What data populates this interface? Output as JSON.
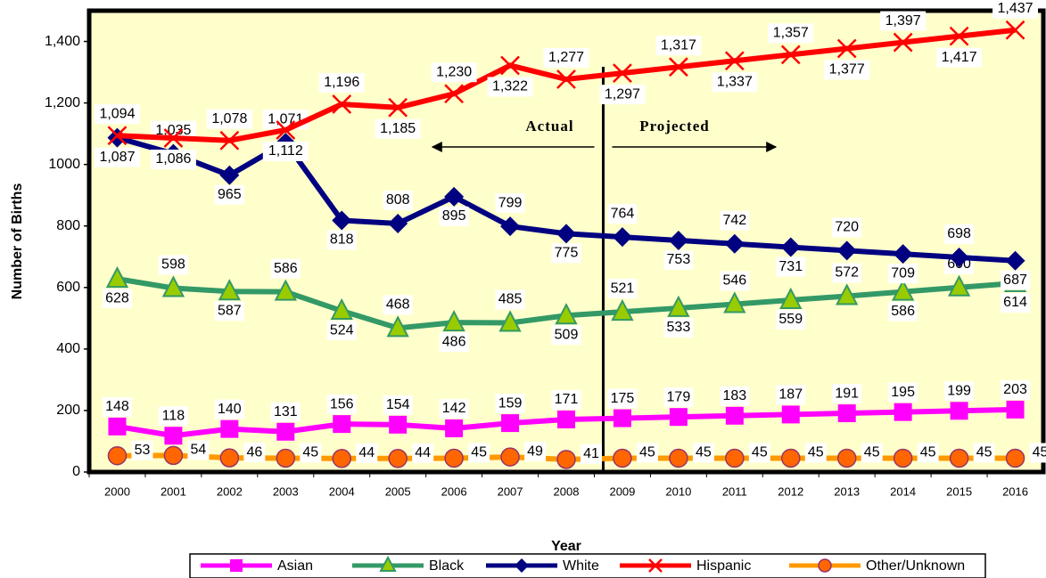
{
  "chart_data": {
    "type": "line",
    "categories": [
      "2000",
      "2001",
      "2002",
      "2003",
      "2004",
      "2005",
      "2006",
      "2007",
      "2008",
      "2009",
      "2010",
      "2011",
      "2012",
      "2013",
      "2014",
      "2015",
      "2016"
    ],
    "xlabel": "Year",
    "ylabel": "Number of Births",
    "ylim": [
      0,
      1500
    ],
    "yticks": [
      0,
      200,
      400,
      600,
      800,
      1000,
      {
        "value": 1200,
        "label": "1,200"
      },
      {
        "value": 1400,
        "label": "1,400"
      }
    ],
    "yticks_fix": null,
    "annotations": [
      "Actual",
      "Projected"
    ],
    "series": [
      {
        "name": "Asian",
        "color": "#ff00ff",
        "marker": "square",
        "values": [
          148,
          118,
          140,
          131,
          156,
          154,
          142,
          159,
          171,
          175,
          179,
          183,
          187,
          191,
          195,
          199,
          203
        ]
      },
      {
        "name": "Black",
        "color": "#339966",
        "marker": "triangle",
        "values": [
          628,
          598,
          587,
          586,
          524,
          468,
          486,
          485,
          509,
          521,
          533,
          546,
          559,
          572,
          586,
          600,
          614
        ]
      },
      {
        "name": "White",
        "color": "#000080",
        "marker": "diamond",
        "values": [
          1087,
          1035,
          965,
          1071,
          818,
          808,
          895,
          799,
          775,
          764,
          753,
          742,
          731,
          720,
          709,
          698,
          687
        ],
        "value_labels": [
          "1,087",
          "1,035",
          "965",
          "1,071",
          "818",
          "808",
          "895",
          "799",
          "775",
          "764",
          "753",
          "742",
          "731",
          "720",
          "709",
          "698",
          "687"
        ]
      },
      {
        "name": "Hispanic",
        "color": "#ff0000",
        "marker": "x",
        "values": [
          1094,
          1086,
          1078,
          1112,
          1196,
          1185,
          1230,
          1322,
          1277,
          1297,
          1317,
          1337,
          1357,
          1377,
          1397,
          1417,
          1437
        ],
        "value_labels": [
          "1,094",
          "1,086",
          "1,078",
          "1,112",
          "1,196",
          "1,185",
          "1,230",
          "1,322",
          "1,277",
          "1,297",
          "1,317",
          "1,337",
          "1,357",
          "1,377",
          "1,397",
          "1,417",
          "1,437"
        ]
      },
      {
        "name": "Other/Unknown",
        "color": "#ff9900",
        "marker": "circle",
        "values": [
          53,
          54,
          46,
          45,
          44,
          44,
          45,
          49,
          41,
          45,
          45,
          45,
          45,
          45,
          45,
          45,
          45
        ]
      }
    ]
  }
}
